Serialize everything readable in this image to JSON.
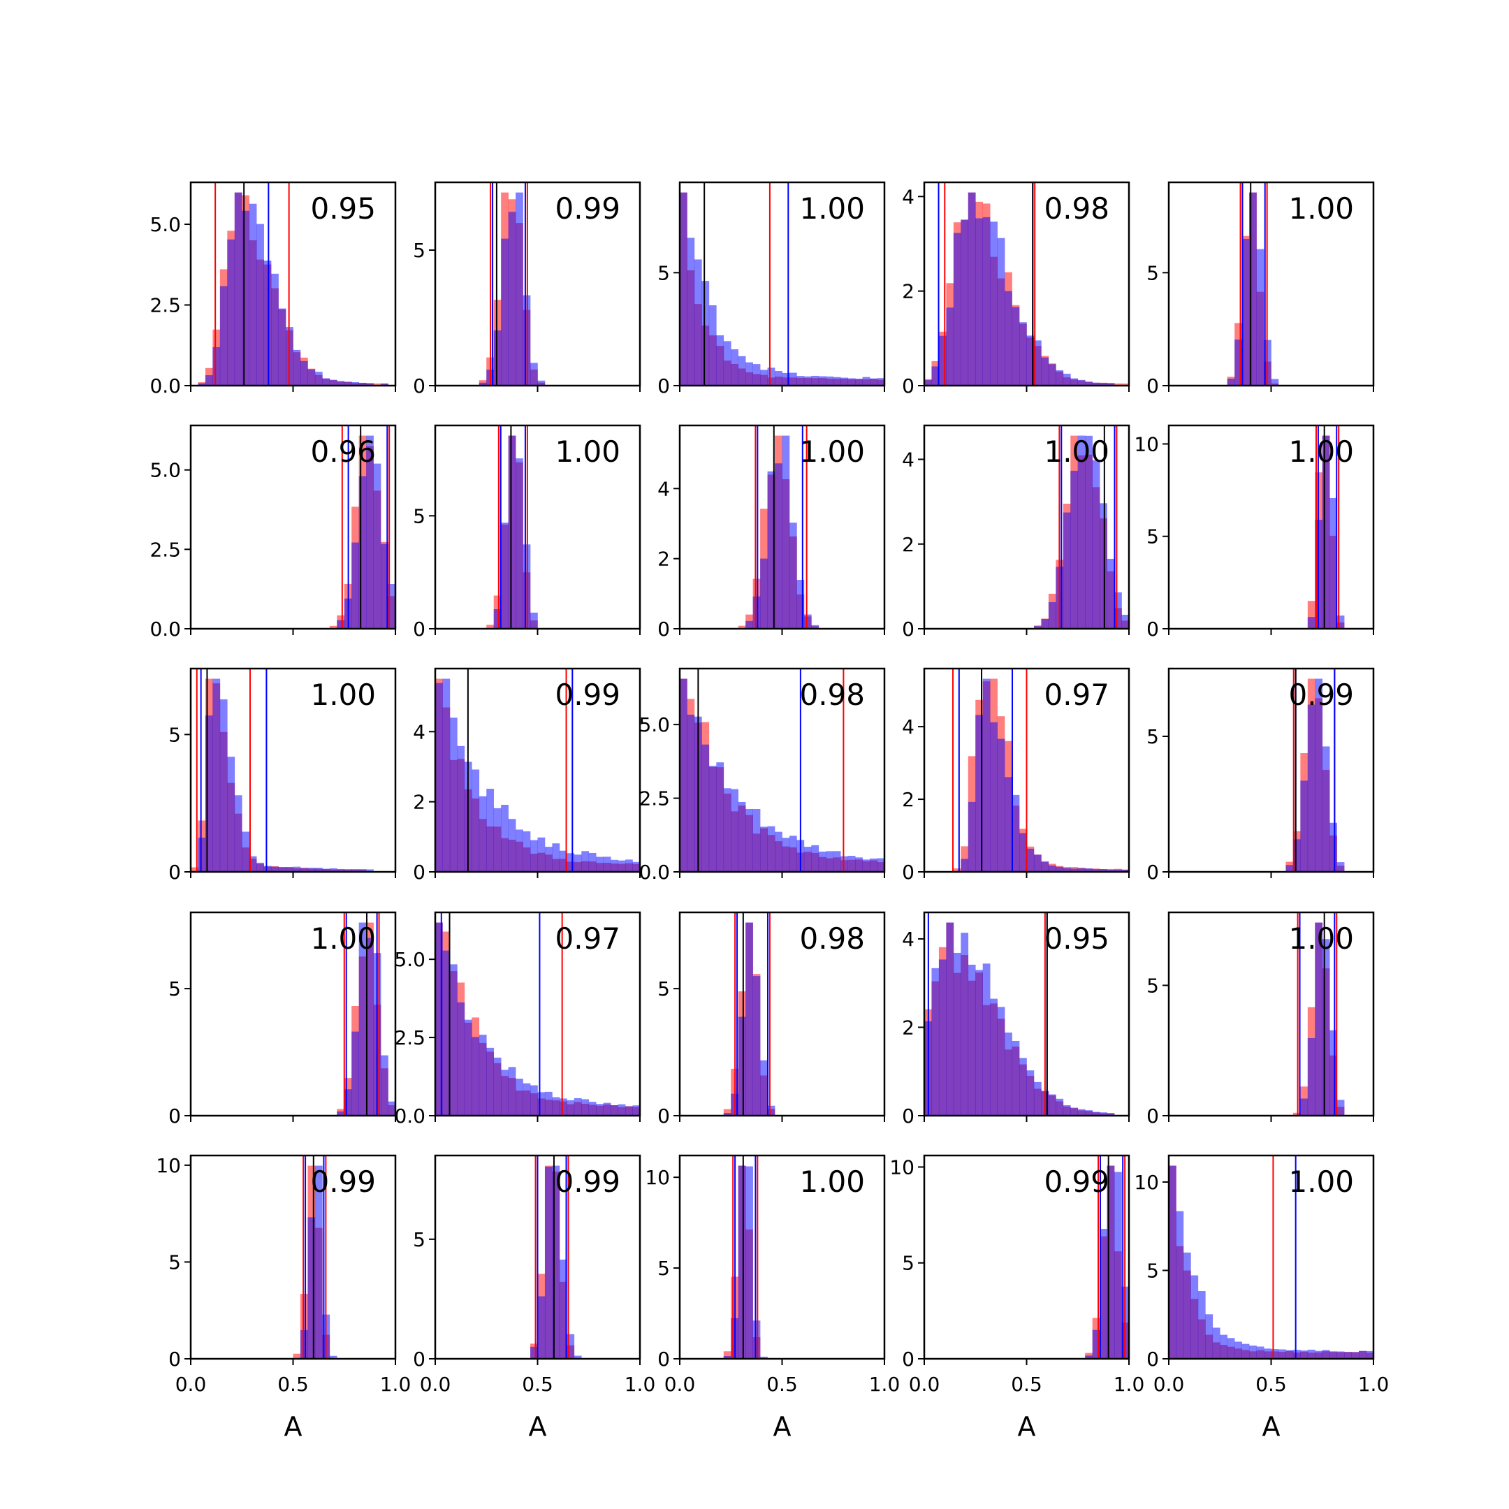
{
  "colors": {
    "series_red": "#ff0000",
    "series_blue": "#0000ff",
    "overlap_purple": "#8040c0",
    "median_line": "#000000"
  },
  "chart_data": {
    "type": "histogram-grid",
    "rows": 5,
    "cols": 5,
    "xlabel": "A",
    "xlim": [
      0,
      1
    ],
    "xticks": [
      0,
      0.5,
      1
    ],
    "xtick_labels": [
      "0.0",
      "0.5",
      "1.0"
    ],
    "series": [
      {
        "color": "red",
        "alpha": 0.5
      },
      {
        "color": "blue",
        "alpha": 0.5
      }
    ],
    "panels": [
      {
        "row": 0,
        "col": 0,
        "label": "0.95",
        "ymax": 6.3,
        "yticks": [
          0,
          2.5,
          5
        ],
        "ytick_labels": [
          "0.0",
          "2.5",
          "5.0"
        ],
        "shape": "skewright",
        "mode": 0.22,
        "width": 0.1,
        "red_lines": [
          0.12,
          0.48
        ],
        "blue_lines": [
          0.0,
          0.38
        ],
        "black_line": 0.26
      },
      {
        "row": 0,
        "col": 1,
        "label": "0.99",
        "ymax": 7.5,
        "yticks": [
          0,
          5
        ],
        "ytick_labels": [
          "0",
          "5"
        ],
        "shape": "normal",
        "mode": 0.37,
        "width": 0.05,
        "red_lines": [
          0.27,
          0.45
        ],
        "blue_lines": [
          0.28,
          0.44
        ],
        "black_line": 0.3
      },
      {
        "row": 0,
        "col": 2,
        "label": "1.00",
        "ymax": 9.0,
        "yticks": [
          0,
          5
        ],
        "ytick_labels": [
          "0",
          "5"
        ],
        "shape": "decay",
        "mode": 0.02,
        "width": 0.1,
        "red_lines": [
          0.0,
          0.44
        ],
        "blue_lines": [
          0.0,
          0.53
        ],
        "black_line": 0.12
      },
      {
        "row": 0,
        "col": 3,
        "label": "0.98",
        "ymax": 4.3,
        "yticks": [
          0,
          2,
          4
        ],
        "ytick_labels": [
          "0",
          "2",
          "4"
        ],
        "shape": "skewright",
        "mode": 0.2,
        "width": 0.12,
        "red_lines": [
          0.1,
          0.54
        ],
        "blue_lines": [
          0.07,
          0.53
        ],
        "black_line": 0.53
      },
      {
        "row": 0,
        "col": 4,
        "label": "1.00",
        "ymax": 9.0,
        "yticks": [
          0,
          5
        ],
        "ytick_labels": [
          "0",
          "5"
        ],
        "shape": "normal",
        "mode": 0.4,
        "width": 0.04,
        "red_lines": [
          0.35,
          0.48
        ],
        "blue_lines": [
          0.36,
          0.47
        ],
        "black_line": 0.4
      },
      {
        "row": 1,
        "col": 0,
        "label": "0.96",
        "ymax": 6.4,
        "yticks": [
          0,
          2.5,
          5
        ],
        "ytick_labels": [
          "0.0",
          "2.5",
          "5.0"
        ],
        "shape": "normal",
        "mode": 0.87,
        "width": 0.06,
        "red_lines": [
          0.74,
          0.97
        ],
        "blue_lines": [
          0.77,
          0.96
        ],
        "black_line": 0.83
      },
      {
        "row": 1,
        "col": 1,
        "label": "1.00",
        "ymax": 9.0,
        "yticks": [
          0,
          5
        ],
        "ytick_labels": [
          "0",
          "5"
        ],
        "shape": "normal",
        "mode": 0.38,
        "width": 0.04,
        "red_lines": [
          0.31,
          0.45
        ],
        "blue_lines": [
          0.32,
          0.44
        ],
        "black_line": 0.37
      },
      {
        "row": 1,
        "col": 2,
        "label": "1.00",
        "ymax": 5.8,
        "yticks": [
          0,
          2,
          4
        ],
        "ytick_labels": [
          "0",
          "2",
          "4"
        ],
        "shape": "normal",
        "mode": 0.48,
        "width": 0.06,
        "red_lines": [
          0.37,
          0.62
        ],
        "blue_lines": [
          0.38,
          0.6
        ],
        "black_line": 0.46
      },
      {
        "row": 1,
        "col": 3,
        "label": "1.00",
        "ymax": 4.8,
        "yticks": [
          0,
          2,
          4
        ],
        "ytick_labels": [
          "0",
          "2",
          "4"
        ],
        "shape": "normal",
        "mode": 0.78,
        "width": 0.08,
        "red_lines": [
          0.66,
          0.94
        ],
        "blue_lines": [
          0.67,
          0.93
        ],
        "black_line": 0.88
      },
      {
        "row": 1,
        "col": 4,
        "label": "1.00",
        "ymax": 11.0,
        "yticks": [
          0,
          5,
          10
        ],
        "ytick_labels": [
          "0",
          "5",
          "10"
        ],
        "shape": "normal",
        "mode": 0.76,
        "width": 0.03,
        "red_lines": [
          0.72,
          0.83
        ],
        "blue_lines": [
          0.73,
          0.82
        ],
        "black_line": 0.76
      },
      {
        "row": 2,
        "col": 0,
        "label": "1.00",
        "ymax": 7.4,
        "yticks": [
          0,
          5
        ],
        "ytick_labels": [
          "0",
          "5"
        ],
        "shape": "skewright",
        "mode": 0.1,
        "width": 0.05,
        "red_lines": [
          0.03,
          0.29
        ],
        "blue_lines": [
          0.05,
          0.37
        ],
        "black_line": 0.08
      },
      {
        "row": 2,
        "col": 1,
        "label": "0.99",
        "ymax": 5.8,
        "yticks": [
          0,
          2,
          4
        ],
        "ytick_labels": [
          "0",
          "2",
          "4"
        ],
        "shape": "decay",
        "mode": 0.03,
        "width": 0.18,
        "red_lines": [
          0.0,
          0.64
        ],
        "blue_lines": [
          0.0,
          0.67
        ],
        "black_line": 0.16
      },
      {
        "row": 2,
        "col": 2,
        "label": "0.98",
        "ymax": 6.9,
        "yticks": [
          0,
          2.5,
          5
        ],
        "ytick_labels": [
          "0.0",
          "2.5",
          "5.0"
        ],
        "shape": "decay",
        "mode": 0.02,
        "width": 0.2,
        "red_lines": [
          0.0,
          0.8
        ],
        "blue_lines": [
          0.0,
          0.59
        ],
        "black_line": 0.09
      },
      {
        "row": 2,
        "col": 3,
        "label": "0.97",
        "ymax": 5.6,
        "yticks": [
          0,
          2,
          4
        ],
        "ytick_labels": [
          "0",
          "2",
          "4"
        ],
        "shape": "skewright",
        "mode": 0.28,
        "width": 0.07,
        "red_lines": [
          0.14,
          0.5
        ],
        "blue_lines": [
          0.17,
          0.43
        ],
        "black_line": 0.28
      },
      {
        "row": 2,
        "col": 4,
        "label": "0.99",
        "ymax": 7.5,
        "yticks": [
          0,
          5
        ],
        "ytick_labels": [
          "0",
          "5"
        ],
        "shape": "normal",
        "mode": 0.71,
        "width": 0.05,
        "red_lines": [
          0.61,
          0.81
        ],
        "blue_lines": [
          0.62,
          0.81
        ],
        "black_line": 0.62
      },
      {
        "row": 3,
        "col": 0,
        "label": "1.00",
        "ymax": 8.0,
        "yticks": [
          0,
          5
        ],
        "ytick_labels": [
          "0",
          "5"
        ],
        "shape": "normal",
        "mode": 0.86,
        "width": 0.05,
        "red_lines": [
          0.75,
          0.92
        ],
        "blue_lines": [
          0.76,
          0.91
        ],
        "black_line": 0.86
      },
      {
        "row": 3,
        "col": 1,
        "label": "0.97",
        "ymax": 6.5,
        "yticks": [
          0,
          2.5,
          5
        ],
        "ytick_labels": [
          "0.0",
          "2.5",
          "5.0"
        ],
        "shape": "decay",
        "mode": 0.03,
        "width": 0.16,
        "red_lines": [
          0.0,
          0.62
        ],
        "blue_lines": [
          0.03,
          0.51
        ],
        "black_line": 0.07
      },
      {
        "row": 3,
        "col": 2,
        "label": "0.98",
        "ymax": 8.0,
        "yticks": [
          0,
          5
        ],
        "ytick_labels": [
          "0",
          "5"
        ],
        "shape": "normal",
        "mode": 0.34,
        "width": 0.04,
        "red_lines": [
          0.27,
          0.44
        ],
        "blue_lines": [
          0.28,
          0.43
        ],
        "black_line": 0.31
      },
      {
        "row": 3,
        "col": 3,
        "label": "0.95",
        "ymax": 4.6,
        "yticks": [
          0,
          2,
          4
        ],
        "ytick_labels": [
          "0",
          "2",
          "4"
        ],
        "shape": "skewright",
        "mode": 0.1,
        "width": 0.15,
        "red_lines": [
          0.0,
          0.59
        ],
        "blue_lines": [
          0.02,
          0.6
        ],
        "black_line": 0.6
      },
      {
        "row": 3,
        "col": 4,
        "label": "1.00",
        "ymax": 7.8,
        "yticks": [
          0,
          5
        ],
        "ytick_labels": [
          "0",
          "5"
        ],
        "shape": "normal",
        "mode": 0.74,
        "width": 0.04,
        "red_lines": [
          0.63,
          0.82
        ],
        "blue_lines": [
          0.64,
          0.81
        ],
        "black_line": 0.76
      },
      {
        "row": 4,
        "col": 0,
        "label": "0.99",
        "ymax": 10.5,
        "yticks": [
          0,
          5,
          10
        ],
        "ytick_labels": [
          "0",
          "5",
          "10"
        ],
        "shape": "normal",
        "mode": 0.6,
        "width": 0.03,
        "red_lines": [
          0.55,
          0.66
        ],
        "blue_lines": [
          0.56,
          0.65
        ],
        "black_line": 0.6
      },
      {
        "row": 4,
        "col": 1,
        "label": "0.99",
        "ymax": 8.5,
        "yticks": [
          0,
          5
        ],
        "ytick_labels": [
          "0",
          "5"
        ],
        "shape": "normal",
        "mode": 0.57,
        "width": 0.04,
        "red_lines": [
          0.49,
          0.65
        ],
        "blue_lines": [
          0.5,
          0.64
        ],
        "black_line": 0.58
      },
      {
        "row": 4,
        "col": 2,
        "label": "1.00",
        "ymax": 11.2,
        "yticks": [
          0,
          5,
          10
        ],
        "ytick_labels": [
          "0",
          "5",
          "10"
        ],
        "shape": "normal",
        "mode": 0.31,
        "width": 0.03,
        "red_lines": [
          0.26,
          0.38
        ],
        "blue_lines": [
          0.27,
          0.37
        ],
        "black_line": 0.31
      },
      {
        "row": 4,
        "col": 3,
        "label": "0.99",
        "ymax": 10.6,
        "yticks": [
          0,
          5,
          10
        ],
        "ytick_labels": [
          "0",
          "5",
          "10"
        ],
        "shape": "normal",
        "mode": 0.91,
        "width": 0.04,
        "red_lines": [
          0.85,
          0.98
        ],
        "blue_lines": [
          0.86,
          0.97
        ],
        "black_line": 0.9
      },
      {
        "row": 4,
        "col": 4,
        "label": "1.00",
        "ymax": 11.5,
        "yticks": [
          0,
          5,
          10
        ],
        "ytick_labels": [
          "0",
          "5",
          "10"
        ],
        "shape": "decay",
        "mode": 0.02,
        "width": 0.08,
        "red_lines": [
          0.0,
          0.51
        ],
        "blue_lines": [
          0.0,
          0.62
        ],
        "black_line": 0.0
      }
    ]
  }
}
